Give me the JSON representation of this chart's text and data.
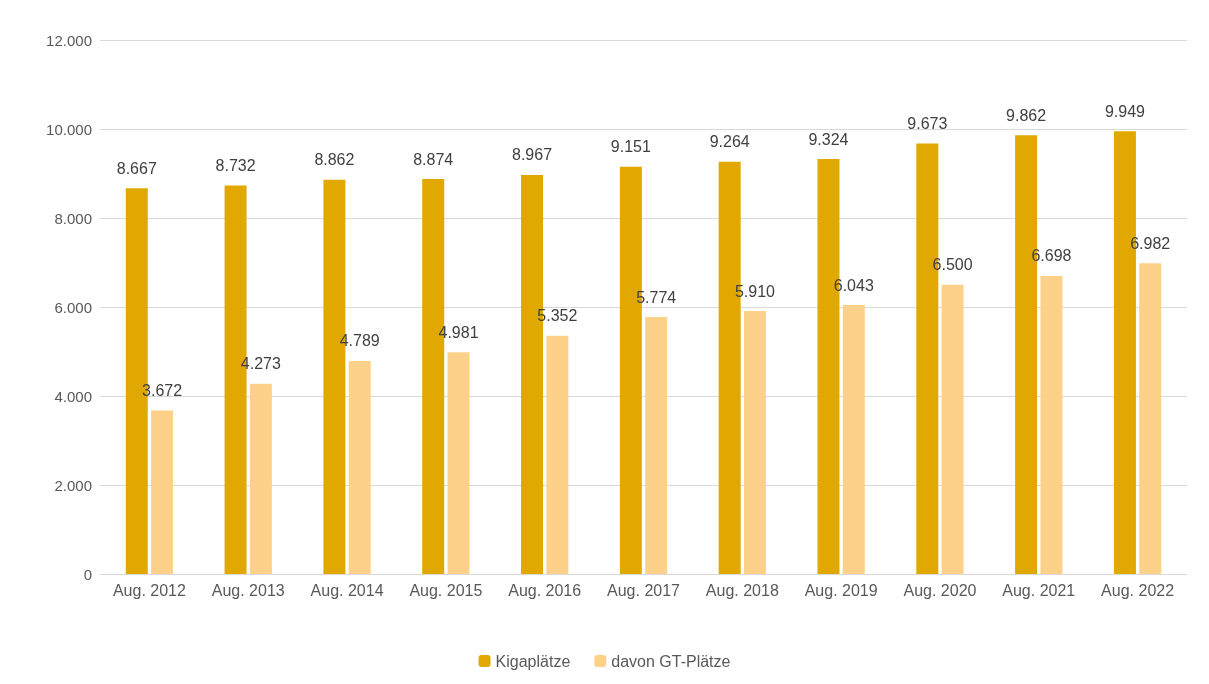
{
  "chart_data": {
    "type": "bar",
    "categories": [
      "Aug. 2012",
      "Aug. 2013",
      "Aug. 2014",
      "Aug. 2015",
      "Aug. 2016",
      "Aug. 2017",
      "Aug. 2018",
      "Aug. 2019",
      "Aug. 2020",
      "Aug. 2021",
      "Aug. 2022"
    ],
    "series": [
      {
        "name": "Kigaplätze",
        "color": "#e0a800",
        "values": [
          8667,
          8732,
          8862,
          8874,
          8967,
          9151,
          9264,
          9324,
          9673,
          9862,
          9949
        ],
        "value_labels": [
          "8.667",
          "8.732",
          "8.862",
          "8.874",
          "8.967",
          "9.151",
          "9.264",
          "9.324",
          "9.673",
          "9.862",
          "9.949"
        ]
      },
      {
        "name": "davon GT-Plätze",
        "color": "#fdd18a",
        "values": [
          3672,
          4273,
          4789,
          4981,
          5352,
          5774,
          5910,
          6043,
          6500,
          6698,
          6982
        ],
        "value_labels": [
          "3.672",
          "4.273",
          "4.789",
          "4.981",
          "5.352",
          "5.774",
          "5.910",
          "6.043",
          "6.500",
          "6.698",
          "6.982"
        ]
      }
    ],
    "ylim": [
      0,
      12000
    ],
    "yticks": [
      0,
      {
        "value": 2000,
        "label": "2.000"
      },
      {
        "value": 4000,
        "label": "4.000"
      },
      {
        "value": 6000,
        "label": "6.000"
      },
      {
        "value": 8000,
        "label": "8.000"
      },
      {
        "value": 10000,
        "label": "10.000"
      },
      {
        "value": 12000,
        "label": "12.000"
      }
    ],
    "grid": "y",
    "legend": "bottom"
  }
}
